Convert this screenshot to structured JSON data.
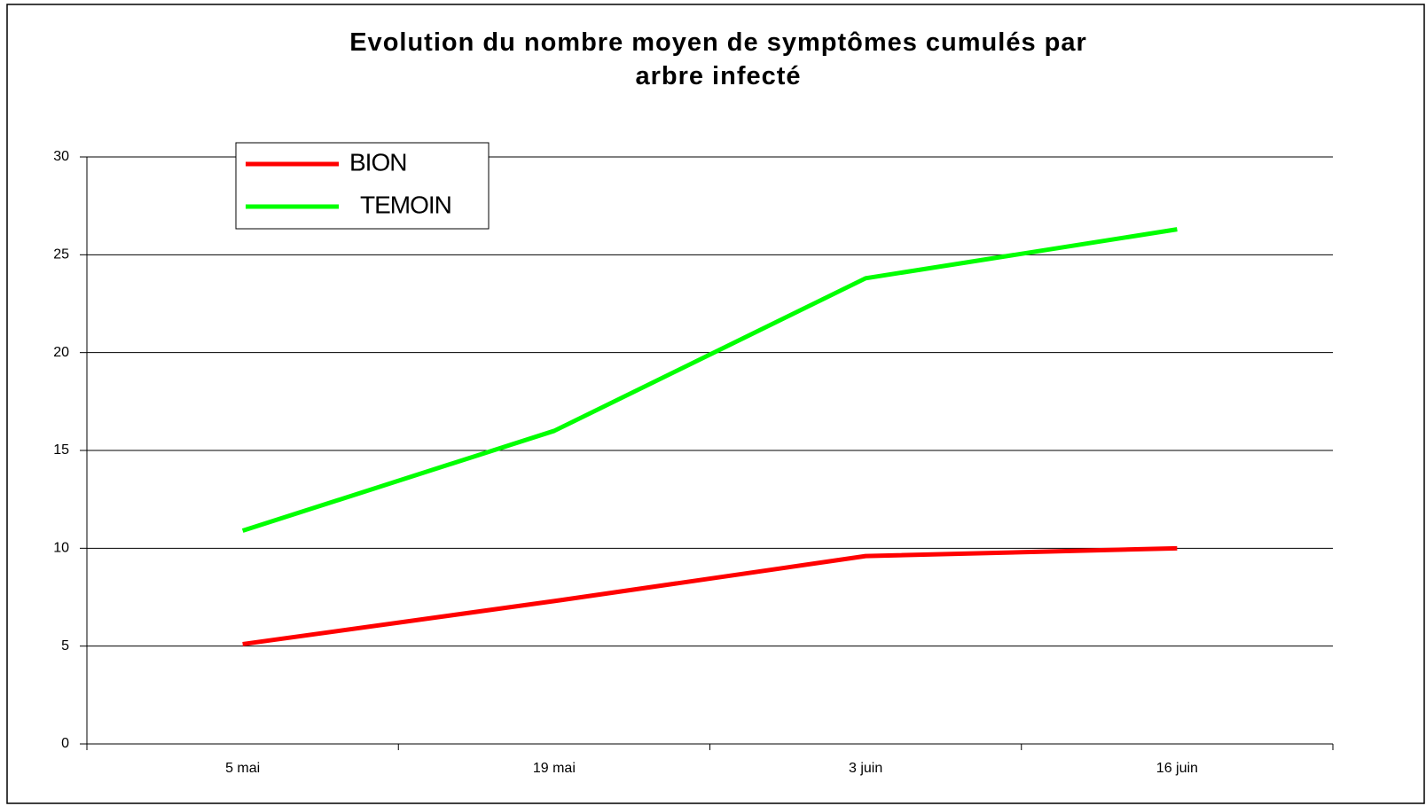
{
  "chart_data": {
    "type": "line",
    "title": "Evolution du nombre moyen de symptômes cumulés par arbre infecté",
    "categories": [
      "5 mai",
      "19 mai",
      "3 juin",
      "16 juin"
    ],
    "series": [
      {
        "name": "BION",
        "color": "#ff0000",
        "values": [
          5.1,
          7.3,
          9.6,
          10.0
        ]
      },
      {
        "name": "TEMOIN",
        "color": "#00ff00",
        "values": [
          10.9,
          16.0,
          23.8,
          26.3
        ]
      }
    ],
    "ylim": [
      0,
      30
    ],
    "yticks": [
      0,
      5,
      10,
      15,
      20,
      25,
      30
    ],
    "grid": true,
    "legend": "top-left"
  }
}
